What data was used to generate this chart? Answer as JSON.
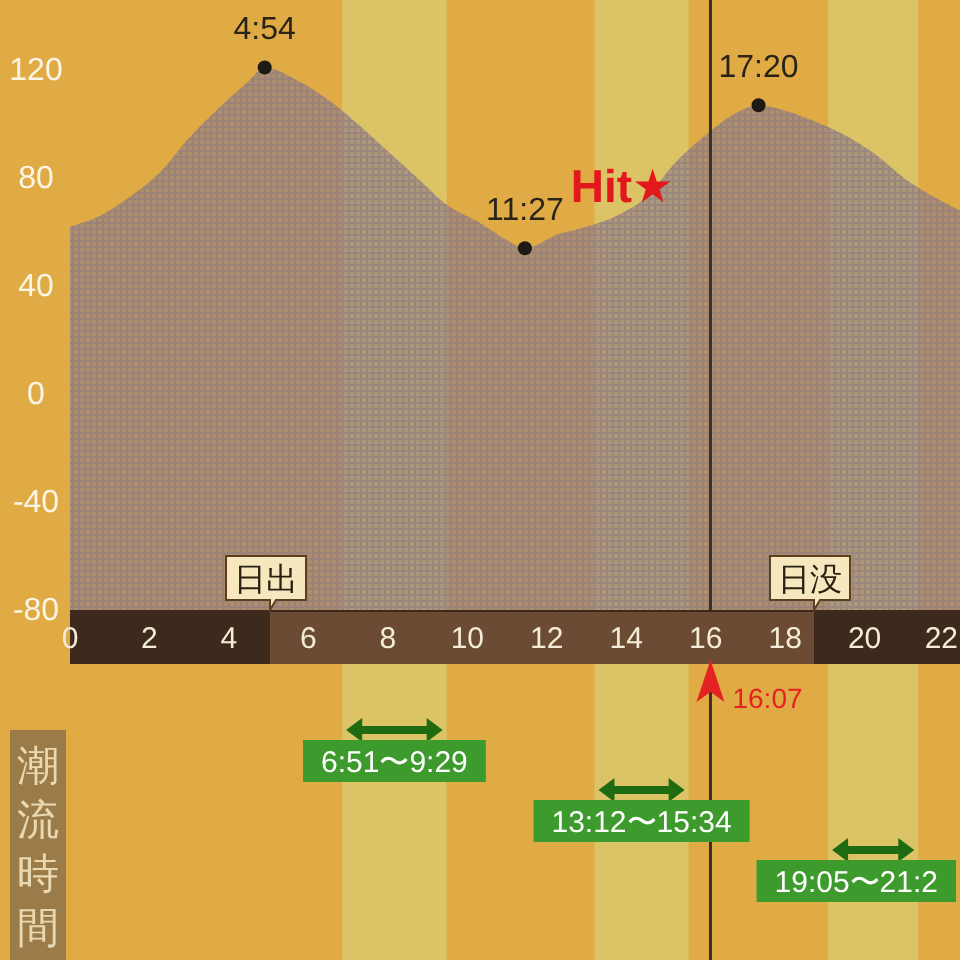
{
  "chart_data": {
    "type": "area",
    "x": [
      0,
      0.75,
      1.5,
      2.25,
      3.0,
      3.75,
      4.5,
      4.9,
      5.75,
      6.5,
      7.25,
      8.0,
      8.75,
      9.5,
      10.25,
      11.0,
      11.45,
      12.25,
      13.0,
      13.75,
      14.5,
      15.25,
      16.0,
      16.75,
      17.33,
      18.0,
      18.75,
      19.5,
      20.25,
      21.0,
      21.75,
      22.4
    ],
    "xlim": [
      0,
      22.4
    ],
    "xticks": [
      0,
      2,
      4,
      6,
      8,
      10,
      12,
      14,
      16,
      18,
      20,
      22
    ],
    "ylim": [
      -80,
      146
    ],
    "yticks": [
      -80,
      -40,
      0,
      40,
      80,
      120
    ],
    "series": [
      {
        "color": "#8c7a86",
        "values": [
          62,
          66,
          73,
          82,
          95,
          106,
          116,
          121,
          116,
          109,
          100,
          90,
          80,
          70,
          64,
          57,
          54,
          59,
          62,
          66,
          73,
          86,
          96,
          104,
          107,
          105,
          101,
          96,
          89,
          80,
          73,
          68
        ]
      },
      {
        "type": "scatter",
        "x": [
          4.9,
          11.45,
          17.33
        ],
        "values": [
          121,
          54,
          107
        ],
        "color": "#1e1a14"
      }
    ],
    "ref_lines": [
      {
        "axis": "x",
        "value": 16.12,
        "label": "16:07",
        "color": "#3a3028",
        "line_style": "solid"
      }
    ],
    "bands": [
      {
        "axis": "x",
        "from": 6.85,
        "to": 9.48,
        "label": "6:51〜9:29",
        "color": "#dcc466"
      },
      {
        "axis": "x",
        "from": 13.2,
        "to": 15.57,
        "label": "13:12〜15:34",
        "color": "#dcc466"
      },
      {
        "axis": "x",
        "from": 19.08,
        "to": 21.35,
        "label": "19:05〜21:2",
        "color": "#dcc466"
      }
    ],
    "annotations": [
      {
        "text": "4:54",
        "x": 4.9,
        "y": 121
      },
      {
        "text": "11:27",
        "x": 11.45,
        "y": 54
      },
      {
        "text": "17:20",
        "x": 17.33,
        "y": 107
      },
      "Hit★",
      "日出",
      "日没",
      "潮流時間"
    ]
  }
}
